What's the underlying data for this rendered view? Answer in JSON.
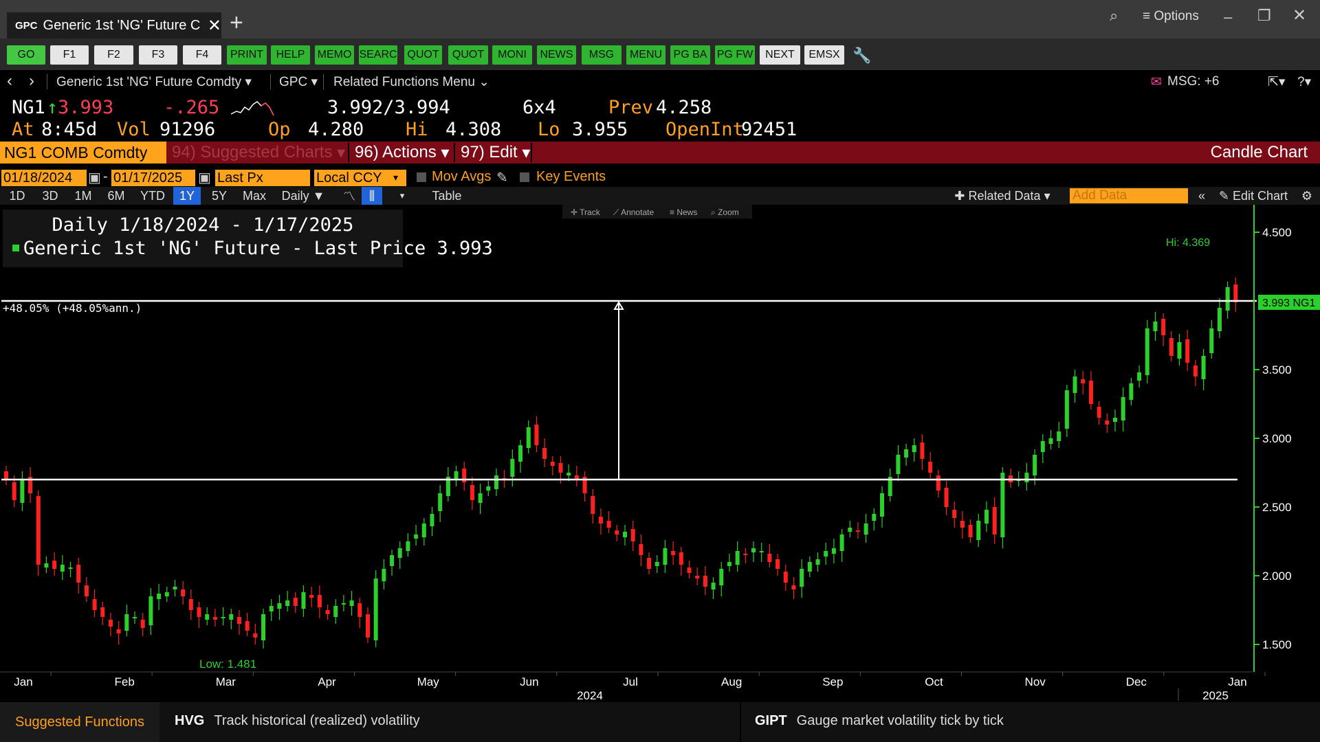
{
  "window": {
    "tab_code": "GPC",
    "tab_title": "Generic 1st 'NG' Future C",
    "options_label": "≡ Options"
  },
  "function_keys": [
    "GO",
    "F1",
    "F2",
    "F3",
    "F4",
    "PRINT",
    "HELP",
    "MEMO",
    "SEARC",
    "QUOT",
    "QUOT",
    "MONI",
    "NEWS",
    "MSG",
    "MENU",
    "PG BA",
    "PG FW",
    "NEXT",
    "EMSX"
  ],
  "nav": {
    "security": "Generic 1st 'NG' Future Comdty",
    "function": "GPC",
    "related": "Related Functions Menu",
    "msg": "MSG: +6"
  },
  "quote": {
    "ticker": "NG1",
    "last": "3.993",
    "change": "-.265",
    "bid_ask": "3.992/3.994",
    "size": "6x4",
    "prev_label": "Prev",
    "prev": "4.258",
    "at_label": "At",
    "time": "8:45d",
    "vol_label": "Vol",
    "vol": "91296",
    "op_label": "Op",
    "open": "4.280",
    "hi_label": "Hi",
    "hi": "4.308",
    "lo_label": "Lo",
    "lo": "3.955",
    "oi_label": "OpenInt",
    "open_interest": "92451"
  },
  "redbar": {
    "ticker": "NG1 COMB Comdty",
    "suggested": "94) Suggested Charts",
    "actions": "96) Actions",
    "edit": "97) Edit",
    "chart_type": "Candle Chart"
  },
  "settings": {
    "start_date": "01/18/2024",
    "end_date": "01/17/2025",
    "field": "Last Px",
    "currency": "Local CCY",
    "mov_avgs": "Mov Avgs",
    "key_events": "Key Events"
  },
  "periods": [
    "1D",
    "3D",
    "1M",
    "6M",
    "YTD",
    "1Y",
    "5Y",
    "Max"
  ],
  "active_period": "1Y",
  "frequency": "Daily ▼",
  "table_label": "Table",
  "related_data": "Related Data",
  "add_data_placeholder": "Add Data",
  "edit_chart": "Edit Chart",
  "toolbar_small": [
    "Track",
    "Annotate",
    "News",
    "Zoom"
  ],
  "legend": {
    "title": "Daily 1/18/2024 - 1/17/2025",
    "series": "Generic 1st 'NG' Future - Last Price",
    "value": "3.993"
  },
  "chart_data": {
    "type": "candlestick",
    "series_name": "Generic 1st 'NG' Future - Last Price",
    "ylim": [
      1.3,
      4.7
    ],
    "y_ticks": [
      "4.500",
      "3.500",
      "3.000",
      "2.500",
      "2.000",
      "1.500"
    ],
    "x_month_labels": [
      "Jan",
      "Feb",
      "Mar",
      "Apr",
      "May",
      "Jun",
      "Jul",
      "Aug",
      "Sep",
      "Oct",
      "Nov",
      "Dec",
      "Jan"
    ],
    "x_year_labels": [
      "2024",
      "2025"
    ],
    "last_price_label": "3.993 NG1",
    "high_label": "Hi: 4.369",
    "low_label": "Low: 1.481",
    "measure_label": "+48.05% (+48.05%ann.)",
    "measure_low": 2.7,
    "measure_high": 4.0,
    "colors": {
      "up": "#2bd02b",
      "down": "#ff2020"
    },
    "closes": [
      2.7,
      2.55,
      2.7,
      2.6,
      2.08,
      2.09,
      2.05,
      2.08,
      2.06,
      1.95,
      1.85,
      1.75,
      1.7,
      1.63,
      1.58,
      1.72,
      1.7,
      1.62,
      1.85,
      1.87,
      1.88,
      1.92,
      1.85,
      1.75,
      1.7,
      1.72,
      1.68,
      1.7,
      1.72,
      1.65,
      1.6,
      1.55,
      1.72,
      1.78,
      1.8,
      1.82,
      1.78,
      1.88,
      1.84,
      1.77,
      1.72,
      1.78,
      1.8,
      1.82,
      1.7,
      1.55,
      1.98,
      2.05,
      2.15,
      2.2,
      2.25,
      2.3,
      2.38,
      2.45,
      2.6,
      2.72,
      2.76,
      2.68,
      2.55,
      2.6,
      2.65,
      2.73,
      2.7,
      2.85,
      2.95,
      3.08,
      2.95,
      2.85,
      2.8,
      2.75,
      2.75,
      2.7,
      2.6,
      2.45,
      2.38,
      2.35,
      2.3,
      2.32,
      2.25,
      2.15,
      2.05,
      2.1,
      2.2,
      2.15,
      2.08,
      2.02,
      1.98,
      1.92,
      1.95,
      2.05,
      2.1,
      2.18,
      2.15,
      2.2,
      2.18,
      2.1,
      2.05,
      1.95,
      1.9,
      2.05,
      2.1,
      2.12,
      2.18,
      2.2,
      2.3,
      2.35,
      2.32,
      2.38,
      2.45,
      2.6,
      2.72,
      2.88,
      2.92,
      2.95,
      2.85,
      2.75,
      2.62,
      2.5,
      2.42,
      2.35,
      2.28,
      2.4,
      2.48,
      2.3,
      2.75,
      2.68,
      2.7,
      2.75,
      2.88,
      2.98,
      3.0,
      3.05,
      3.35,
      3.45,
      3.4,
      3.25,
      3.15,
      3.1,
      3.15,
      3.3,
      3.4,
      3.48,
      3.8,
      3.85,
      3.75,
      3.6,
      3.7,
      3.55,
      3.45,
      3.6,
      3.8,
      3.95,
      4.1,
      3.99
    ]
  },
  "suggested_functions": {
    "label": "Suggested Functions",
    "items": [
      {
        "code": "HVG",
        "desc": "Track historical (realized) volatility"
      },
      {
        "code": "GIPT",
        "desc": "Gauge market volatility tick by tick"
      }
    ]
  }
}
